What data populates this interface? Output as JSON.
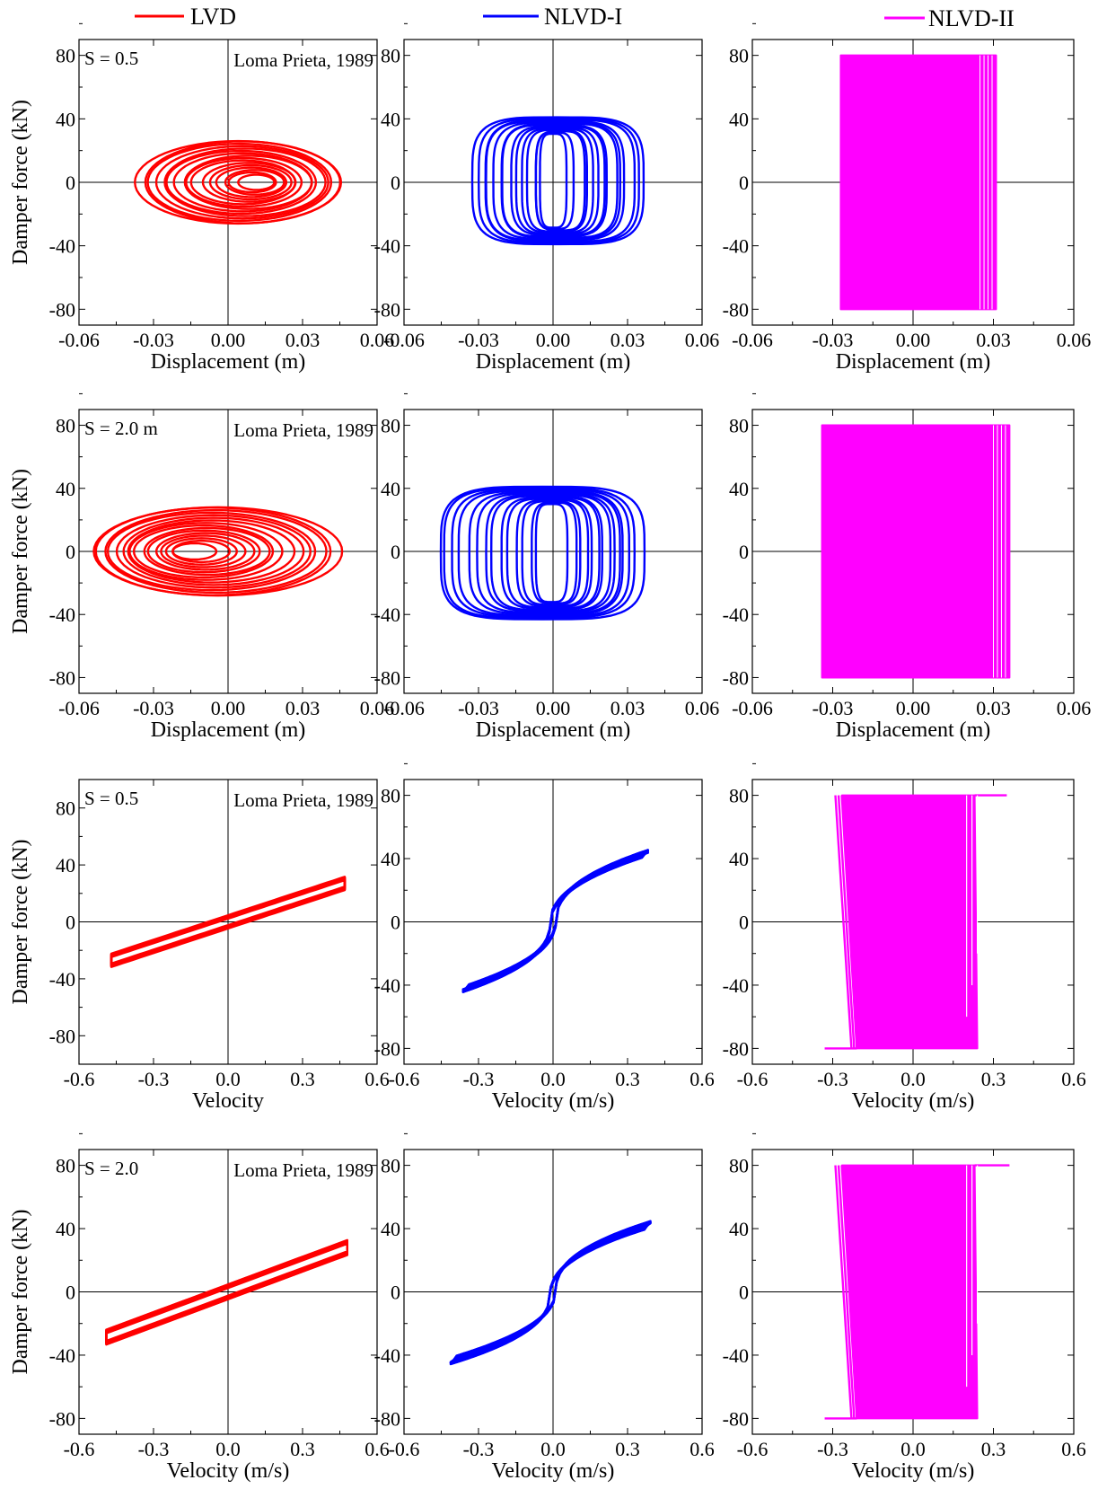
{
  "legend": {
    "items": [
      {
        "label": "LVD",
        "color": "#ff0000"
      },
      {
        "label": "NLVD-I",
        "color": "#0000ff"
      },
      {
        "label": "NLVD-II",
        "color": "#ff00ff"
      }
    ]
  },
  "chart_data": [
    {
      "type": "line",
      "row": 0,
      "col": 0,
      "series_name": "LVD",
      "color": "#ff0000",
      "xlabel": "Displacement (m)",
      "ylabel": "Damper force (kN)",
      "xlim": [
        -0.06,
        0.06
      ],
      "ylim": [
        -90,
        90
      ],
      "xticks": [
        "-0.06",
        "-0.03",
        "0.00",
        "0.03",
        "0.06"
      ],
      "yticks": [
        "-80",
        "-40",
        "0",
        "40",
        "80"
      ],
      "label_S": "S = 0.5",
      "label_quake": "Loma Prieta, 1989",
      "shape": "ellipse",
      "x_range": [
        -0.038,
        0.045
      ],
      "y_range": [
        -26,
        26
      ],
      "x_offset": 0.003
    },
    {
      "type": "line",
      "row": 0,
      "col": 1,
      "series_name": "NLVD-I",
      "color": "#0000ff",
      "xlabel": "Displacement (m)",
      "ylabel": "",
      "xlim": [
        -0.06,
        0.06
      ],
      "ylim": [
        -90,
        90
      ],
      "xticks": [
        "-0.06",
        "-0.03",
        "0.00",
        "0.03",
        "0.06"
      ],
      "yticks": [
        "-80",
        "-40",
        "0",
        "40",
        "80"
      ],
      "label_S": "",
      "label_quake": "",
      "shape": "rect-loop",
      "x_range": [
        -0.033,
        0.036
      ],
      "y_range": [
        -39,
        41
      ],
      "x_offset": 0.0
    },
    {
      "type": "line",
      "row": 0,
      "col": 2,
      "series_name": "NLVD-II",
      "color": "#ff00ff",
      "xlabel": "Displacement (m)",
      "ylabel": "",
      "xlim": [
        -0.06,
        0.06
      ],
      "ylim": [
        -90,
        90
      ],
      "xticks": [
        "-0.06",
        "-0.03",
        "0.00",
        "0.03",
        "0.06"
      ],
      "yticks": [
        "-80",
        "-40",
        "0",
        "40",
        "80"
      ],
      "label_S": "",
      "label_quake": "",
      "shape": "block",
      "x_range": [
        -0.027,
        0.031
      ],
      "y_range": [
        -80,
        80
      ],
      "x_offset": 0.0
    },
    {
      "type": "line",
      "row": 1,
      "col": 0,
      "series_name": "LVD",
      "color": "#ff0000",
      "xlabel": "Displacement (m)",
      "ylabel": "Damper force (kN)",
      "xlim": [
        -0.06,
        0.06
      ],
      "ylim": [
        -90,
        90
      ],
      "xticks": [
        "-0.06",
        "-0.03",
        "0.00",
        "0.03",
        "0.06"
      ],
      "yticks": [
        "-80",
        "-40",
        "0",
        "40",
        "80"
      ],
      "label_S": "S = 2.0 m",
      "label_quake": "Loma Prieta, 1989",
      "shape": "ellipse",
      "x_range": [
        -0.055,
        0.045
      ],
      "y_range": [
        -28,
        28
      ],
      "x_offset": -0.003
    },
    {
      "type": "line",
      "row": 1,
      "col": 1,
      "series_name": "NLVD-I",
      "color": "#0000ff",
      "xlabel": "Displacement (m)",
      "ylabel": "",
      "xlim": [
        -0.06,
        0.06
      ],
      "ylim": [
        -90,
        90
      ],
      "xticks": [
        "-0.06",
        "-0.03",
        "0.00",
        "0.03",
        "0.06"
      ],
      "yticks": [
        "-80",
        "-40",
        "0",
        "40",
        "80"
      ],
      "label_S": "",
      "label_quake": "",
      "shape": "rect-loop",
      "x_range": [
        -0.046,
        0.036
      ],
      "y_range": [
        -43,
        41
      ],
      "x_offset": 0.007
    },
    {
      "type": "line",
      "row": 1,
      "col": 2,
      "series_name": "NLVD-II",
      "color": "#ff00ff",
      "xlabel": "Displacement (m)",
      "ylabel": "",
      "xlim": [
        -0.06,
        0.06
      ],
      "ylim": [
        -90,
        90
      ],
      "xticks": [
        "-0.06",
        "-0.03",
        "0.00",
        "0.03",
        "0.06"
      ],
      "yticks": [
        "-80",
        "-40",
        "0",
        "40",
        "80"
      ],
      "label_S": "",
      "label_quake": "",
      "shape": "block",
      "x_range": [
        -0.034,
        0.036
      ],
      "y_range": [
        -80,
        80
      ],
      "x_offset": 0.0
    },
    {
      "type": "line",
      "row": 2,
      "col": 0,
      "series_name": "LVD",
      "color": "#ff0000",
      "xlabel": "Velocity",
      "ylabel": "Damper force (kN)",
      "xlim": [
        -0.6,
        0.6
      ],
      "ylim": [
        -100,
        100
      ],
      "xticks": [
        "-0.6",
        "-0.3",
        "0.0",
        "0.3",
        "0.6"
      ],
      "yticks": [
        "-80",
        "-40",
        "0",
        "40",
        "80"
      ],
      "label_S": "S = 0.5",
      "label_quake": "Loma Prieta, 1989",
      "shape": "linear",
      "x_range": [
        -0.47,
        0.47
      ],
      "y_range": [
        -27,
        27
      ],
      "x_offset": 0.0
    },
    {
      "type": "line",
      "row": 2,
      "col": 1,
      "series_name": "NLVD-I",
      "color": "#0000ff",
      "xlabel": "Velocity (m/s)",
      "ylabel": "",
      "xlim": [
        -0.6,
        0.6
      ],
      "ylim": [
        -90,
        90
      ],
      "xticks": [
        "-0.6",
        "-0.3",
        "0.0",
        "0.3",
        "0.6"
      ],
      "yticks": [
        "-80",
        "-40",
        "0",
        "40",
        "80"
      ],
      "label_S": "",
      "label_quake": "",
      "shape": "sigmoid",
      "x_range": [
        -0.35,
        0.37
      ],
      "y_range": [
        -41,
        43
      ],
      "x_offset": 0.0
    },
    {
      "type": "line",
      "row": 2,
      "col": 2,
      "series_name": "NLVD-II",
      "color": "#ff00ff",
      "xlabel": "Velocity (m/s)",
      "ylabel": "",
      "xlim": [
        -0.6,
        0.6
      ],
      "ylim": [
        -90,
        90
      ],
      "xticks": [
        "-0.6",
        "-0.3",
        "0.0",
        "0.3",
        "0.6"
      ],
      "yticks": [
        "-80",
        "-40",
        "0",
        "40",
        "80"
      ],
      "label_S": "",
      "label_quake": "",
      "shape": "fan",
      "x_range": [
        -0.33,
        0.35
      ],
      "y_range": [
        -80,
        80
      ],
      "x_offset": 0.0
    },
    {
      "type": "line",
      "row": 3,
      "col": 0,
      "series_name": "LVD",
      "color": "#ff0000",
      "xlabel": "Velocity (m/s)",
      "ylabel": "Damper force (kN)",
      "xlim": [
        -0.6,
        0.6
      ],
      "ylim": [
        -90,
        90
      ],
      "xticks": [
        "-0.6",
        "-0.3",
        "0.0",
        "0.3",
        "0.6"
      ],
      "yticks": [
        "-80",
        "-40",
        "0",
        "40",
        "80"
      ],
      "label_S": "S = 2.0",
      "label_quake": "Loma Prieta, 1989",
      "shape": "linear",
      "x_range": [
        -0.49,
        0.48
      ],
      "y_range": [
        -28,
        28
      ],
      "x_offset": 0.0
    },
    {
      "type": "line",
      "row": 3,
      "col": 1,
      "series_name": "NLVD-I",
      "color": "#0000ff",
      "xlabel": "Velocity (m/s)",
      "ylabel": "",
      "xlim": [
        -0.6,
        0.6
      ],
      "ylim": [
        -90,
        90
      ],
      "xticks": [
        "-0.6",
        "-0.3",
        "0.0",
        "0.3",
        "0.6"
      ],
      "yticks": [
        "-80",
        "-40",
        "0",
        "40",
        "80"
      ],
      "label_S": "",
      "label_quake": "",
      "shape": "sigmoid",
      "x_range": [
        -0.4,
        0.38
      ],
      "y_range": [
        -43,
        42
      ],
      "x_offset": 0.0
    },
    {
      "type": "line",
      "row": 3,
      "col": 2,
      "series_name": "NLVD-II",
      "color": "#ff00ff",
      "xlabel": "Velocity (m/s)",
      "ylabel": "",
      "xlim": [
        -0.6,
        0.6
      ],
      "ylim": [
        -90,
        90
      ],
      "xticks": [
        "-0.6",
        "-0.3",
        "0.0",
        "0.3",
        "0.6"
      ],
      "yticks": [
        "-80",
        "-40",
        "0",
        "40",
        "80"
      ],
      "label_S": "",
      "label_quake": "",
      "shape": "fan",
      "x_range": [
        -0.33,
        0.36
      ],
      "y_range": [
        -80,
        80
      ],
      "x_offset": 0.0
    }
  ]
}
